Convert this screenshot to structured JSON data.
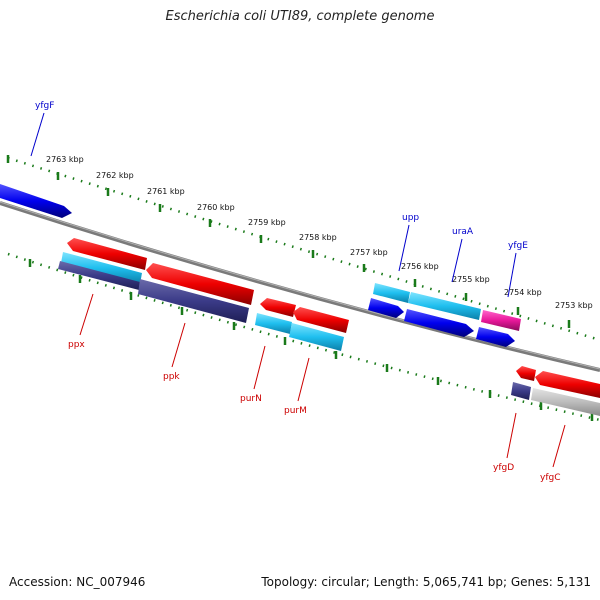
{
  "title": "Escherichia coli UTI89, complete genome",
  "footer": {
    "accession": "Accession: NC_007946",
    "summary": "Topology: circular; Length: 5,065,741 bp; Genes: 5,131"
  },
  "scale_labels": [
    "2763 kbp",
    "2762 kbp",
    "2761 kbp",
    "2760 kbp",
    "2759 kbp",
    "2758 kbp",
    "2757 kbp",
    "2756 kbp",
    "2755 kbp",
    "2754 kbp",
    "2753 kbp"
  ],
  "colors": {
    "forward_strand": "#0000ee",
    "reverse_strand": "#cc0000",
    "tick": "#1a7a1a",
    "backbone": "#808080"
  },
  "genes_top": [
    "yfgF",
    "upp",
    "uraA",
    "yfgE"
  ],
  "genes_bottom": [
    "ppx",
    "ppk",
    "purN",
    "purM",
    "yfgD",
    "yfgC"
  ]
}
